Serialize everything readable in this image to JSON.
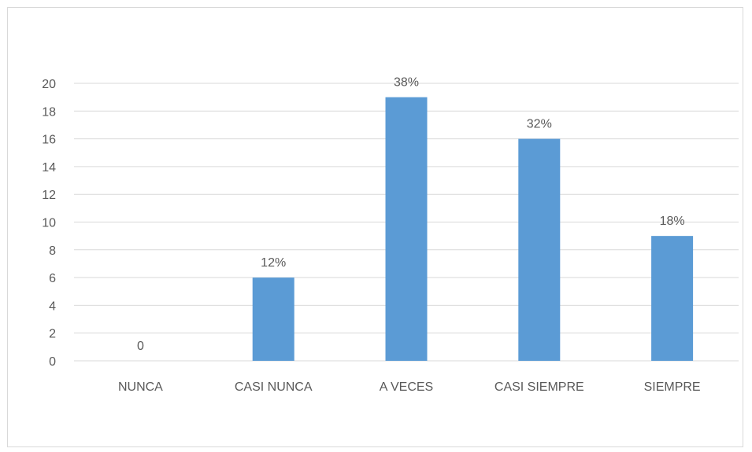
{
  "chart_data": {
    "type": "bar",
    "categories": [
      "NUNCA",
      "CASI NUNCA",
      "A VECES",
      "CASI SIEMPRE",
      "SIEMPRE"
    ],
    "values": [
      0,
      6,
      19,
      16,
      9
    ],
    "data_labels": [
      "0",
      "12%",
      "38%",
      "32%",
      "18%"
    ],
    "title": "",
    "xlabel": "",
    "ylabel": "",
    "ylim": [
      0,
      20
    ],
    "yticks": [
      0,
      2,
      4,
      6,
      8,
      10,
      12,
      14,
      16,
      18,
      20
    ],
    "grid": true,
    "legend": "none",
    "bar_color": "#5b9bd5",
    "grid_color": "#d9d9d9"
  }
}
